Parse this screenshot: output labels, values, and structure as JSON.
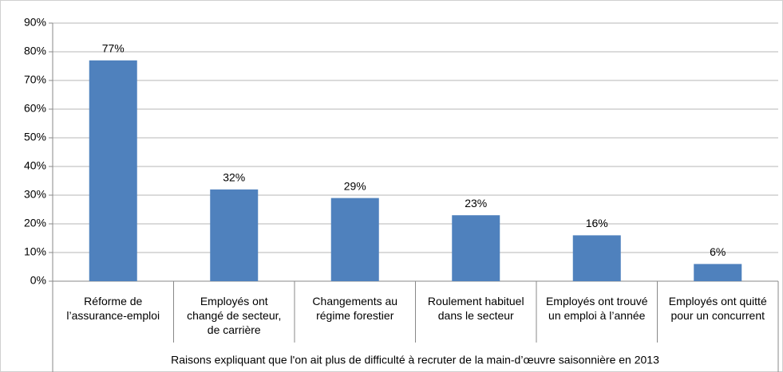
{
  "chart_data": {
    "type": "bar",
    "x_label": "Raisons expliquant que l'on ait plus de difficulté à recruter de la main-d’œuvre saisonnière en 2013",
    "categories": [
      "Réforme de\nl’assurance-emploi",
      "Employés ont\nchangé de secteur,\nde carrière",
      "Changements au\nrégime forestier",
      "Roulement habituel\ndans le secteur",
      "Employés ont trouvé\nun emploi à l’année",
      "Employés ont quitté\npour un concurrent"
    ],
    "values": [
      77,
      32,
      29,
      23,
      16,
      6
    ],
    "value_labels": [
      "77%",
      "32%",
      "29%",
      "23%",
      "16%",
      "6%"
    ],
    "color": "#4f81bd",
    "ylim": [
      0,
      90
    ],
    "yticks": [
      {
        "value": 0,
        "label": "0%"
      },
      {
        "value": 10,
        "label": "10%"
      },
      {
        "value": 20,
        "label": "20%"
      },
      {
        "value": 30,
        "label": "30%"
      },
      {
        "value": 40,
        "label": "40%"
      },
      {
        "value": 50,
        "label": "50%"
      },
      {
        "value": 60,
        "label": "60%"
      },
      {
        "value": 70,
        "label": "70%"
      },
      {
        "value": 80,
        "label": "80%"
      },
      {
        "value": 90,
        "label": "90%"
      }
    ],
    "grid": true
  }
}
